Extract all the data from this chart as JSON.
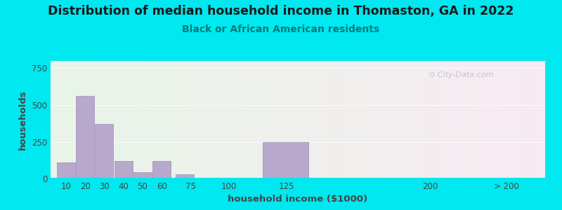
{
  "title": "Distribution of median household income in Thomaston, GA in 2022",
  "subtitle": "Black or African American residents",
  "xlabel": "household income ($1000)",
  "ylabel": "households",
  "background_outer": "#00e8f0",
  "bar_color": "#b8a8cc",
  "bar_edgecolor": "#a090bb",
  "title_fontsize": 12.5,
  "subtitle_fontsize": 10,
  "label_fontsize": 9.5,
  "tick_fontsize": 8.5,
  "bar_lefts": [
    5,
    15,
    25,
    35,
    45,
    55,
    67,
    87,
    112,
    195
  ],
  "bar_rights": [
    15,
    25,
    35,
    45,
    55,
    65,
    77,
    102,
    137,
    205
  ],
  "bar_heights": [
    110,
    560,
    370,
    120,
    45,
    120,
    30,
    0,
    248,
    5
  ],
  "xtick_labels": [
    "10",
    "20",
    "30",
    "40",
    "50",
    "60",
    "75",
    "100",
    "125",
    "200",
    "> 200"
  ],
  "xtick_positions": [
    10,
    20,
    30,
    40,
    50,
    60,
    75,
    95,
    125,
    200,
    240
  ],
  "ytick_positions": [
    0,
    250,
    500,
    750
  ],
  "ytick_labels": [
    "0",
    "250",
    "500",
    "750"
  ],
  "ylim": [
    0,
    800
  ],
  "xlim": [
    2,
    260
  ],
  "watermark": "City-Data.com",
  "title_color": "#1a1a1a",
  "subtitle_color": "#007a7a",
  "axis_label_color": "#444444",
  "tick_color": "#444444"
}
